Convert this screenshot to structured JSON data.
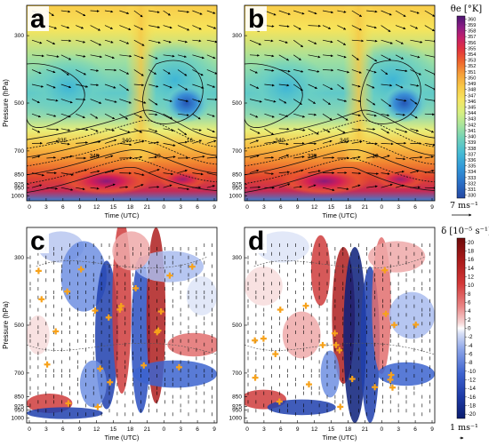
{
  "panels": [
    {
      "id": "a",
      "label": "a",
      "kind": "theta",
      "y_label": "Pressure (hPa)",
      "x_label": "Time (UTC)"
    },
    {
      "id": "b",
      "label": "b",
      "kind": "theta",
      "y_label": "",
      "x_label": "Time (UTC)"
    },
    {
      "id": "c",
      "label": "c",
      "kind": "div",
      "y_label": "Pressure (hPa)",
      "x_label": "Time (UTC)"
    },
    {
      "id": "d",
      "label": "d",
      "kind": "div",
      "y_label": "",
      "x_label": "Time (UTC)"
    }
  ],
  "x_ticks": [
    "0",
    "3",
    "6",
    "9",
    "12",
    "15",
    "18",
    "21",
    "0",
    "3",
    "6",
    "9"
  ],
  "y_ticks": [
    "300",
    "500",
    "700",
    "850",
    "925",
    "950",
    "1000"
  ],
  "colorbar_top": {
    "title": "θe [°K]",
    "ticks": [
      "360",
      "359",
      "358",
      "357",
      "356",
      "355",
      "354",
      "353",
      "352",
      "351",
      "350",
      "349",
      "348",
      "347",
      "346",
      "345",
      "344",
      "343",
      "342",
      "341",
      "340",
      "339",
      "338",
      "337",
      "336",
      "335",
      "334",
      "333",
      "332",
      "331",
      "330"
    ],
    "ref_vector": "7 ms⁻¹"
  },
  "colorbar_bottom": {
    "title": "δ [10⁻⁵ s⁻¹]",
    "ticks": [
      "20",
      "18",
      "16",
      "14",
      "12",
      "10",
      "8",
      "6",
      "4",
      "2",
      "0",
      "-2",
      "-4",
      "-6",
      "-8",
      "-10",
      "-12",
      "-14",
      "-16",
      "-18",
      "-20"
    ],
    "ref_vector": "1 ms⁻¹"
  },
  "contour_labels_a": [
    "335",
    "345",
    "340",
    "10",
    "16"
  ],
  "contour_labels_b": [
    "340",
    "335",
    "345",
    "10"
  ],
  "colors": {
    "theta_scale": [
      "#4b1470",
      "#7a1a8a",
      "#b0207a",
      "#d61e4e",
      "#e8432f",
      "#f07a2e",
      "#f5a43a",
      "#f8c645",
      "#f6e063",
      "#e6ef7a",
      "#c3ea8e",
      "#93dca3",
      "#63cdc0",
      "#3db3d8",
      "#2d8ed6",
      "#2a6bc4",
      "#264fa8"
    ],
    "div_scale": [
      "#0b1f7a",
      "#1f3fae",
      "#3c64cf",
      "#6e8fe2",
      "#a9bcef",
      "#dde4f7",
      "#ffffff",
      "#f7dcdc",
      "#efa9a9",
      "#e26e6e",
      "#cf3c3c",
      "#ae1f1f",
      "#7a0b0b"
    ],
    "marker": "#f7a21b"
  }
}
